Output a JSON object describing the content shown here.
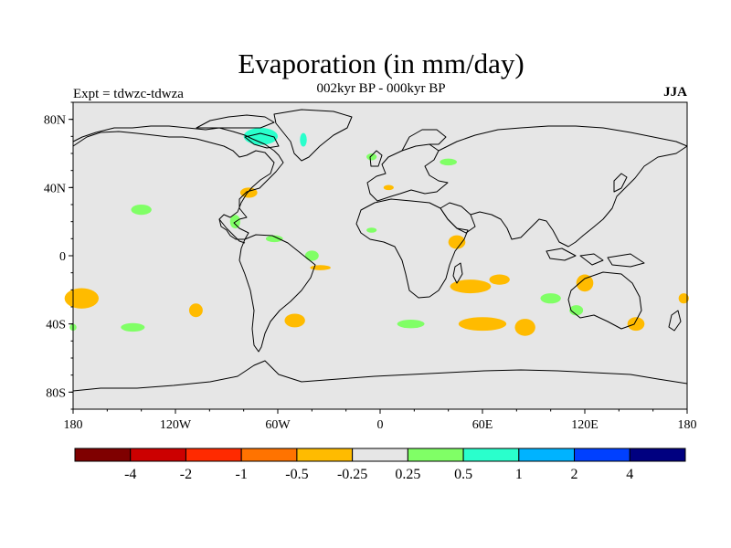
{
  "title": "Evaporation (in mm/day)",
  "subtitle": "002kyr BP - 000kyr BP",
  "experiment_label": "Expt = tdwzc-tdwza",
  "season_label": "JJA",
  "map": {
    "projection": "cylindrical-equidistant",
    "lon_range": [
      -180,
      180
    ],
    "lat_range": [
      -90,
      90
    ],
    "background_color": "#e6e6e6",
    "coastline_color": "#000000",
    "lat_ticks": [
      {
        "value": 80,
        "label": "80N"
      },
      {
        "value": 40,
        "label": "40N"
      },
      {
        "value": 0,
        "label": "0"
      },
      {
        "value": -40,
        "label": "40S"
      },
      {
        "value": -80,
        "label": "80S"
      }
    ],
    "lon_ticks": [
      {
        "value": -180,
        "label": "180"
      },
      {
        "value": -120,
        "label": "120W"
      },
      {
        "value": -60,
        "label": "60W"
      },
      {
        "value": 0,
        "label": "0"
      },
      {
        "value": 60,
        "label": "60E"
      },
      {
        "value": 120,
        "label": "120E"
      },
      {
        "value": 180,
        "label": "180"
      }
    ]
  },
  "colorbar": {
    "colors": [
      "#7f0000",
      "#cc0000",
      "#ff2a00",
      "#ff7300",
      "#ffbb00",
      "#e6e6e6",
      "#80ff66",
      "#2affcc",
      "#00b3ff",
      "#0040ff",
      "#000080"
    ],
    "labels": [
      "-4",
      "-2",
      "-1",
      "-0.5",
      "-0.25",
      "0.25",
      "0.5",
      "1",
      "2",
      "4"
    ]
  },
  "anomaly_patches": [
    {
      "lon": -140,
      "lat": 27,
      "rx": 6,
      "ry": 3,
      "color": "#80ff66"
    },
    {
      "lon": -175,
      "lat": -25,
      "rx": 10,
      "ry": 6,
      "color": "#ffbb00"
    },
    {
      "lon": -108,
      "lat": -32,
      "rx": 4,
      "ry": 4,
      "color": "#ffbb00"
    },
    {
      "lon": -145,
      "lat": -42,
      "rx": 7,
      "ry": 2.5,
      "color": "#80ff66"
    },
    {
      "lon": -77,
      "lat": 37,
      "rx": 5,
      "ry": 3,
      "color": "#ffbb00"
    },
    {
      "lon": -85,
      "lat": 20,
      "rx": 3,
      "ry": 4,
      "color": "#80ff66"
    },
    {
      "lon": -62,
      "lat": 10,
      "rx": 5,
      "ry": 2,
      "color": "#80ff66"
    },
    {
      "lon": -40,
      "lat": 0,
      "rx": 4,
      "ry": 3,
      "color": "#80ff66"
    },
    {
      "lon": -50,
      "lat": -38,
      "rx": 6,
      "ry": 4,
      "color": "#ffbb00"
    },
    {
      "lon": -35,
      "lat": -7,
      "rx": 6,
      "ry": 1.5,
      "color": "#ffbb00"
    },
    {
      "lon": -70,
      "lat": 70,
      "rx": 10,
      "ry": 5,
      "color": "#2affcc"
    },
    {
      "lon": -45,
      "lat": 68,
      "rx": 2,
      "ry": 4,
      "color": "#2affcc"
    },
    {
      "lon": 40,
      "lat": 55,
      "rx": 5,
      "ry": 2,
      "color": "#80ff66"
    },
    {
      "lon": -5,
      "lat": 58,
      "rx": 3,
      "ry": 2,
      "color": "#80ff66"
    },
    {
      "lon": 5,
      "lat": 40,
      "rx": 3,
      "ry": 1.5,
      "color": "#ffbb00"
    },
    {
      "lon": -5,
      "lat": 15,
      "rx": 3,
      "ry": 1.5,
      "color": "#80ff66"
    },
    {
      "lon": 45,
      "lat": 8,
      "rx": 5,
      "ry": 4,
      "color": "#ffbb00"
    },
    {
      "lon": 53,
      "lat": -18,
      "rx": 12,
      "ry": 4,
      "color": "#ffbb00"
    },
    {
      "lon": 70,
      "lat": -14,
      "rx": 6,
      "ry": 3,
      "color": "#ffbb00"
    },
    {
      "lon": 60,
      "lat": -40,
      "rx": 14,
      "ry": 4,
      "color": "#ffbb00"
    },
    {
      "lon": 18,
      "lat": -40,
      "rx": 8,
      "ry": 2.5,
      "color": "#80ff66"
    },
    {
      "lon": 85,
      "lat": -42,
      "rx": 6,
      "ry": 5,
      "color": "#ffbb00"
    },
    {
      "lon": 100,
      "lat": -25,
      "rx": 6,
      "ry": 3,
      "color": "#80ff66"
    },
    {
      "lon": 120,
      "lat": -16,
      "rx": 5,
      "ry": 5,
      "color": "#ffbb00"
    },
    {
      "lon": 115,
      "lat": -32,
      "rx": 4,
      "ry": 3,
      "color": "#80ff66"
    },
    {
      "lon": 150,
      "lat": -40,
      "rx": 5,
      "ry": 4,
      "color": "#ffbb00"
    },
    {
      "lon": 178,
      "lat": -25,
      "rx": 3,
      "ry": 3,
      "color": "#ffbb00"
    },
    {
      "lon": -180,
      "lat": -42,
      "rx": 2,
      "ry": 2,
      "color": "#80ff66"
    }
  ]
}
